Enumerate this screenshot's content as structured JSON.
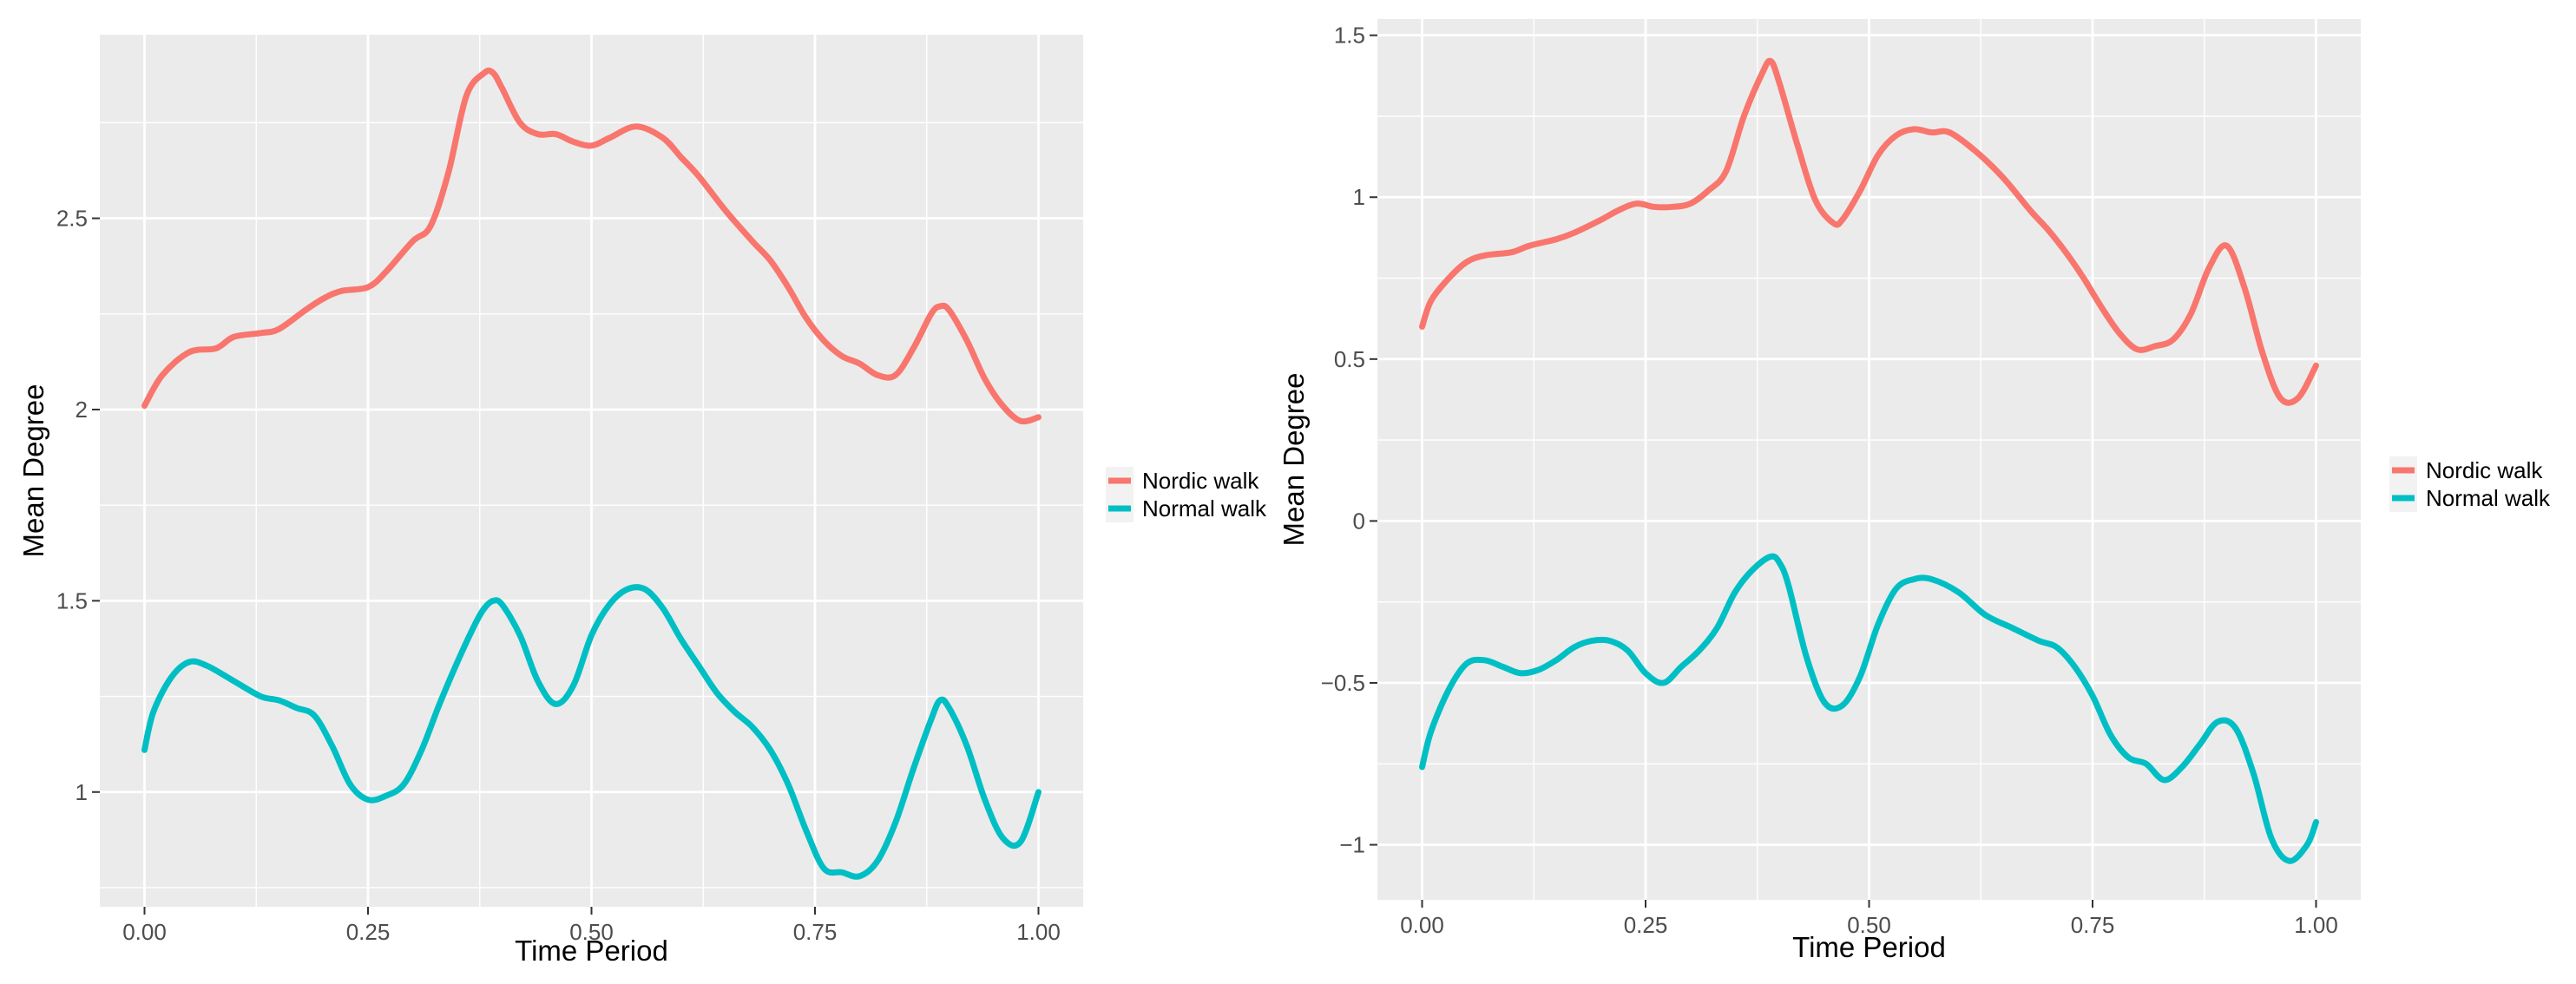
{
  "chart_data": [
    {
      "type": "line",
      "title": "",
      "xlabel": "Time Period",
      "ylabel": "Mean Degree",
      "xlim": [
        -0.05,
        1.05
      ],
      "ylim": [
        0.7,
        2.98
      ],
      "xticks": [
        0,
        0.25,
        0.5,
        0.75,
        1
      ],
      "xtick_labels": [
        "0.00",
        "0.25",
        "0.50",
        "0.75",
        "1.00"
      ],
      "yticks": [
        1,
        1.5,
        2,
        2.5
      ],
      "ytick_labels": [
        "1",
        "1.5",
        "2",
        "2.5"
      ],
      "grid": true,
      "legend_position": "right",
      "series": [
        {
          "name": "Nordic walk",
          "color": "#F8766D",
          "x": [
            0,
            0.02,
            0.05,
            0.08,
            0.1,
            0.13,
            0.15,
            0.18,
            0.2,
            0.22,
            0.25,
            0.27,
            0.3,
            0.32,
            0.34,
            0.36,
            0.38,
            0.39,
            0.4,
            0.42,
            0.44,
            0.46,
            0.48,
            0.5,
            0.52,
            0.55,
            0.58,
            0.6,
            0.62,
            0.65,
            0.68,
            0.7,
            0.72,
            0.74,
            0.76,
            0.78,
            0.8,
            0.82,
            0.84,
            0.86,
            0.88,
            0.89,
            0.9,
            0.92,
            0.94,
            0.96,
            0.98,
            1.0
          ],
          "y": [
            2.01,
            2.09,
            2.15,
            2.16,
            2.19,
            2.2,
            2.21,
            2.26,
            2.29,
            2.31,
            2.32,
            2.36,
            2.44,
            2.48,
            2.62,
            2.82,
            2.88,
            2.88,
            2.84,
            2.75,
            2.72,
            2.72,
            2.7,
            2.69,
            2.71,
            2.74,
            2.71,
            2.66,
            2.61,
            2.52,
            2.44,
            2.39,
            2.32,
            2.24,
            2.18,
            2.14,
            2.12,
            2.09,
            2.09,
            2.16,
            2.25,
            2.27,
            2.26,
            2.18,
            2.08,
            2.01,
            1.97,
            1.98
          ]
        },
        {
          "name": "Normal walk",
          "color": "#00BFC4",
          "x": [
            0,
            0.01,
            0.03,
            0.05,
            0.07,
            0.1,
            0.13,
            0.15,
            0.17,
            0.19,
            0.21,
            0.23,
            0.25,
            0.27,
            0.29,
            0.31,
            0.33,
            0.35,
            0.37,
            0.38,
            0.39,
            0.4,
            0.42,
            0.44,
            0.46,
            0.48,
            0.5,
            0.52,
            0.54,
            0.56,
            0.58,
            0.6,
            0.62,
            0.64,
            0.66,
            0.68,
            0.7,
            0.72,
            0.74,
            0.76,
            0.78,
            0.8,
            0.82,
            0.84,
            0.86,
            0.88,
            0.89,
            0.9,
            0.92,
            0.94,
            0.96,
            0.98,
            1.0
          ],
          "y": [
            1.11,
            1.21,
            1.3,
            1.34,
            1.33,
            1.29,
            1.25,
            1.24,
            1.22,
            1.2,
            1.12,
            1.02,
            0.98,
            0.99,
            1.02,
            1.11,
            1.23,
            1.34,
            1.44,
            1.48,
            1.5,
            1.49,
            1.41,
            1.29,
            1.23,
            1.28,
            1.41,
            1.49,
            1.53,
            1.53,
            1.48,
            1.4,
            1.33,
            1.26,
            1.21,
            1.17,
            1.11,
            1.02,
            0.9,
            0.8,
            0.79,
            0.78,
            0.82,
            0.92,
            1.06,
            1.19,
            1.24,
            1.22,
            1.12,
            0.98,
            0.88,
            0.87,
            1.0
          ]
        }
      ]
    },
    {
      "type": "line",
      "title": "",
      "xlabel": "Time Period",
      "ylabel": "Mean Degree",
      "xlim": [
        -0.05,
        1.05
      ],
      "ylim": [
        -1.17,
        1.55
      ],
      "xticks": [
        0,
        0.25,
        0.5,
        0.75,
        1
      ],
      "xtick_labels": [
        "0.00",
        "0.25",
        "0.50",
        "0.75",
        "1.00"
      ],
      "yticks": [
        -1,
        -0.5,
        0,
        0.5,
        1,
        1.5
      ],
      "ytick_labels": [
        "−1",
        "−0.5",
        "0",
        "0.5",
        "1",
        "1.5"
      ],
      "grid": true,
      "legend_position": "right",
      "series": [
        {
          "name": "Nordic walk",
          "color": "#F8766D",
          "x": [
            0,
            0.01,
            0.03,
            0.05,
            0.07,
            0.1,
            0.12,
            0.15,
            0.17,
            0.2,
            0.22,
            0.24,
            0.26,
            0.28,
            0.3,
            0.32,
            0.34,
            0.36,
            0.38,
            0.39,
            0.4,
            0.42,
            0.44,
            0.46,
            0.47,
            0.49,
            0.51,
            0.53,
            0.55,
            0.57,
            0.59,
            0.62,
            0.65,
            0.68,
            0.7,
            0.72,
            0.74,
            0.76,
            0.78,
            0.8,
            0.82,
            0.84,
            0.86,
            0.88,
            0.9,
            0.92,
            0.94,
            0.96,
            0.98,
            1.0
          ],
          "y": [
            0.6,
            0.68,
            0.75,
            0.8,
            0.82,
            0.83,
            0.85,
            0.87,
            0.89,
            0.93,
            0.96,
            0.98,
            0.97,
            0.97,
            0.98,
            1.02,
            1.08,
            1.25,
            1.38,
            1.42,
            1.35,
            1.16,
            0.99,
            0.92,
            0.93,
            1.02,
            1.13,
            1.19,
            1.21,
            1.2,
            1.2,
            1.14,
            1.06,
            0.96,
            0.9,
            0.83,
            0.75,
            0.66,
            0.58,
            0.53,
            0.54,
            0.56,
            0.64,
            0.78,
            0.85,
            0.72,
            0.52,
            0.38,
            0.38,
            0.48
          ]
        },
        {
          "name": "Normal walk",
          "color": "#00BFC4",
          "x": [
            0,
            0.01,
            0.03,
            0.05,
            0.07,
            0.09,
            0.11,
            0.13,
            0.15,
            0.17,
            0.19,
            0.21,
            0.23,
            0.25,
            0.27,
            0.29,
            0.31,
            0.33,
            0.35,
            0.37,
            0.39,
            0.4,
            0.41,
            0.43,
            0.45,
            0.47,
            0.49,
            0.51,
            0.53,
            0.55,
            0.57,
            0.6,
            0.63,
            0.66,
            0.69,
            0.71,
            0.73,
            0.75,
            0.77,
            0.79,
            0.81,
            0.83,
            0.85,
            0.87,
            0.89,
            0.91,
            0.93,
            0.95,
            0.97,
            0.99,
            1.0
          ],
          "y": [
            -0.76,
            -0.65,
            -0.52,
            -0.44,
            -0.43,
            -0.45,
            -0.47,
            -0.46,
            -0.43,
            -0.39,
            -0.37,
            -0.37,
            -0.4,
            -0.47,
            -0.5,
            -0.45,
            -0.4,
            -0.33,
            -0.22,
            -0.15,
            -0.11,
            -0.13,
            -0.2,
            -0.42,
            -0.56,
            -0.57,
            -0.48,
            -0.32,
            -0.21,
            -0.18,
            -0.18,
            -0.22,
            -0.29,
            -0.33,
            -0.37,
            -0.39,
            -0.45,
            -0.54,
            -0.66,
            -0.73,
            -0.75,
            -0.8,
            -0.76,
            -0.69,
            -0.62,
            -0.64,
            -0.78,
            -0.98,
            -1.05,
            -1.0,
            -0.93
          ]
        }
      ]
    }
  ]
}
